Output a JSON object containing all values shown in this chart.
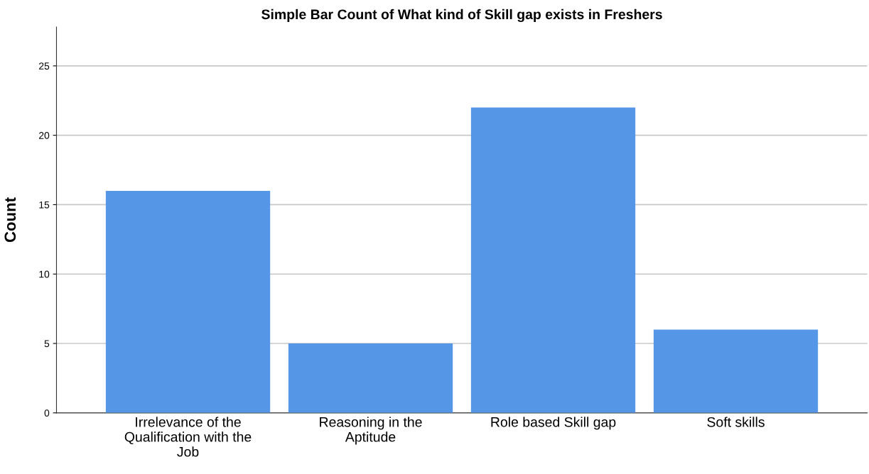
{
  "chart_data": {
    "type": "bar",
    "title": "Simple Bar Count of What kind of Skill gap exists in Freshers",
    "ylabel": "Count",
    "categories": [
      "Irrelevance of the Qualification with the Job",
      "Reasoning in the Aptitude",
      "Role based Skill gap",
      "Soft skills"
    ],
    "values": [
      16,
      5,
      22,
      6
    ],
    "color": "#5596e6",
    "ylim": [
      0,
      27.8
    ],
    "yticks": [
      0,
      5,
      10,
      15,
      20,
      25
    ],
    "grid": "y",
    "legend": false
  }
}
